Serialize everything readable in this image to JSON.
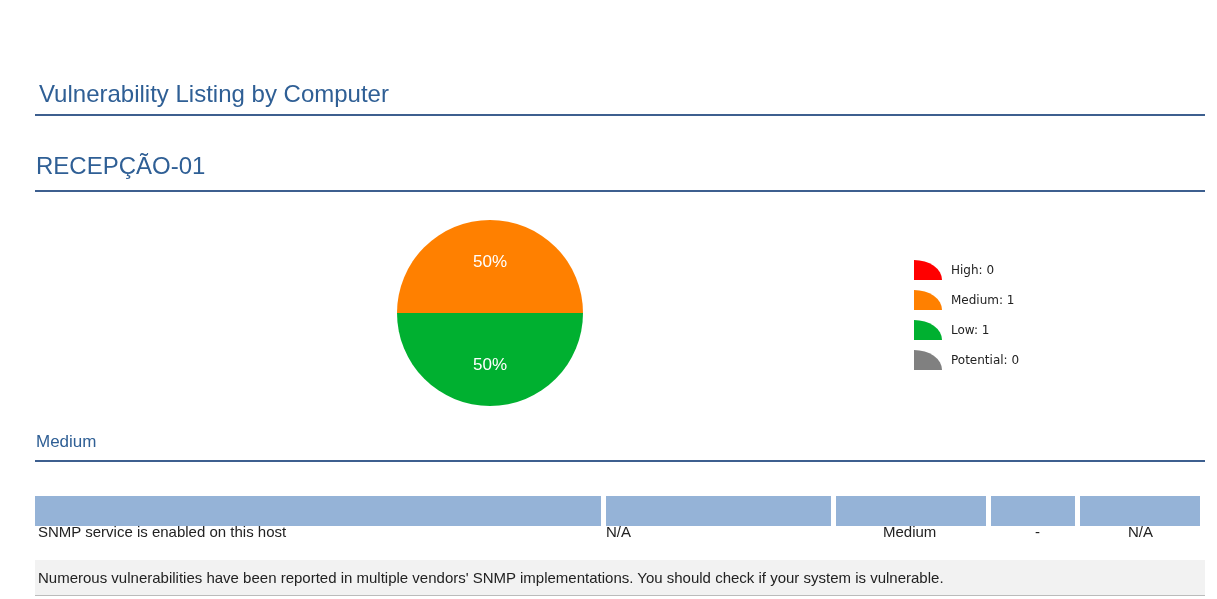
{
  "chart_data": {
    "type": "pie",
    "title": "Vulnerability Listing by Computer",
    "subtitle": "RECEPÇÃO-01",
    "categories": [
      "High: 0",
      "Medium: 1",
      "Low: 1",
      "Potential: 0"
    ],
    "values": [
      0,
      50,
      50,
      0
    ],
    "colors": [
      "#ff0000",
      "#ff8000",
      "#00b030",
      "#808080"
    ],
    "value_labels": [
      null,
      "50%",
      "50%",
      null
    ],
    "legend": "right",
    "annotations": [
      "Medium",
      "SNMP service is enabled on this host",
      "N/A",
      "Medium",
      "-",
      "N/A",
      "Numerous vulnerabilities have been reported in multiple vendors' SNMP implementations. You should check if your system is vulnerable."
    ]
  }
}
